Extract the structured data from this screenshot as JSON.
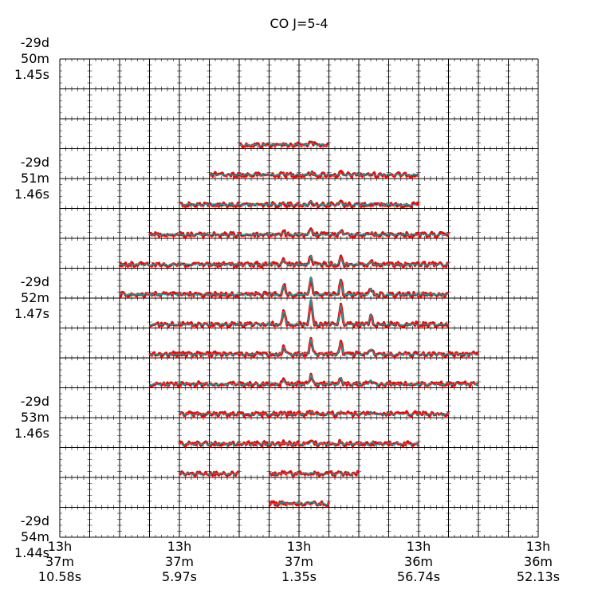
{
  "chart_data": {
    "type": "line",
    "title": "CO J=5-4",
    "grid": {
      "rows": 16,
      "cols": 16
    },
    "x_tick_labels": [
      [
        "13h",
        "37m",
        "10.58s"
      ],
      [
        "13h",
        "37m",
        "5.97s"
      ],
      [
        "13h",
        "37m",
        "1.35s"
      ],
      [
        "13h",
        "36m",
        "56.74s"
      ],
      [
        "13h",
        "36m",
        "52.13s"
      ]
    ],
    "y_tick_labels": [
      [
        "-29d",
        "50m",
        "1.45s"
      ],
      [
        "-29d",
        "51m",
        "1.46s"
      ],
      [
        "-29d",
        "52m",
        "1.47s"
      ],
      [
        "-29d",
        "53m",
        "1.46s"
      ],
      [
        "-29d",
        "54m",
        "1.44s"
      ]
    ],
    "spectra_rows": [
      {
        "row": 2,
        "col_start": 6,
        "col_end": 8,
        "peak": 0.1
      },
      {
        "row": 3,
        "col_start": 5,
        "col_end": 11,
        "peak": 0.1
      },
      {
        "row": 4,
        "col_start": 4,
        "col_end": 11,
        "peak": 0.15
      },
      {
        "row": 5,
        "col_start": 3,
        "col_end": 12,
        "peak": 0.2
      },
      {
        "row": 6,
        "col_start": 2,
        "col_end": 12,
        "peak": 0.35
      },
      {
        "row": 7,
        "col_start": 2,
        "col_end": 12,
        "peak": 0.7
      },
      {
        "row": 8,
        "col_start": 3,
        "col_end": 12,
        "peak": 1.0
      },
      {
        "row": 9,
        "col_start": 3,
        "col_end": 13,
        "peak": 0.6
      },
      {
        "row": 10,
        "col_start": 3,
        "col_end": 13,
        "peak": 0.35
      },
      {
        "row": 11,
        "col_start": 4,
        "col_end": 12,
        "peak": 0.1
      },
      {
        "row": 12,
        "col_start": 4,
        "col_end": 11,
        "peak": 0.1
      },
      {
        "row": 13,
        "col_start": 4,
        "col_end": 5,
        "peak": 0.05
      },
      {
        "row": 13,
        "col_start": 7,
        "col_end": 9,
        "peak": 0.05
      },
      {
        "row": 14,
        "col_start": 7,
        "col_end": 8,
        "peak": 0.08
      }
    ],
    "series": [
      {
        "color": "#ff0000"
      },
      {
        "color": "#00aaaa"
      }
    ]
  }
}
